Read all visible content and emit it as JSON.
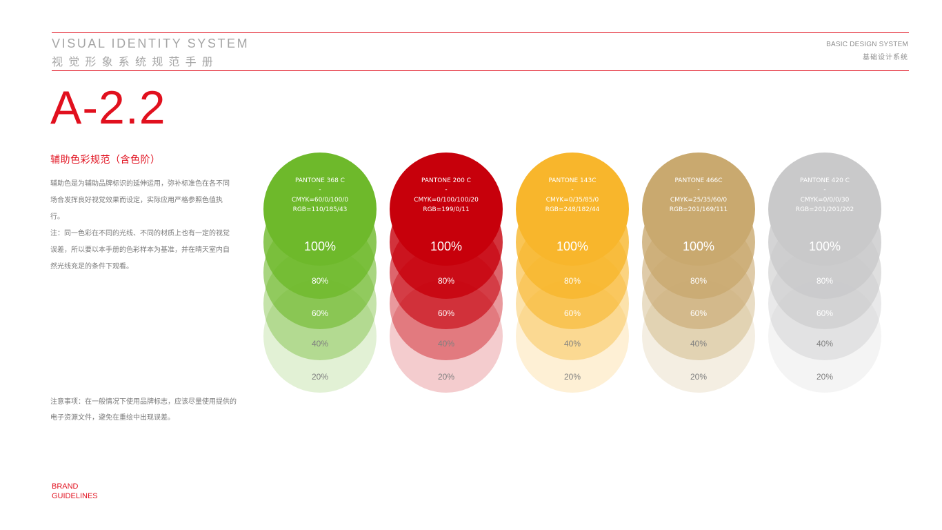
{
  "header": {
    "title_en": "VISUAL IDENTITY SYSTEM",
    "title_cn": "视觉形象系统规范手册",
    "right_en": "BASIC DESIGN SYSTEM",
    "right_cn": "基础设计系统"
  },
  "section": {
    "code": "A-2.2",
    "title": "辅助色彩规范（含色阶）",
    "desc_1": "辅助色是为辅助品牌标识的延伸运用，弥补标准色在各不同场合发挥良好视觉效果而设定，实际应用严格参照色值执行。",
    "desc_2": "注：同一色彩在不同的光线、不同的材质上也有一定的视觉误差，所以要以本手册的色彩样本为基准，并在晴天室内自然光线充足的条件下观看。",
    "note": "注意事项：在一般情况下使用品牌标志，应该尽量使用提供的电子资源文件，避免在重绘中出现误差。"
  },
  "footer": {
    "brand_line1": "BRAND",
    "brand_line2": "GUIDELINES"
  },
  "colors": [
    {
      "pantone": "PANTONE 368 C",
      "dash": "-",
      "cmyk": "CMYK=60/0/100/0",
      "rgb": "RGB=110/185/43",
      "hex": "#6eb92b",
      "tints": {
        "t100": "100%",
        "t80": "80%",
        "t60": "60%",
        "t40": "40%",
        "t20": "20%"
      },
      "text_on_dark": "#ffffff",
      "text_on_light": "#ffffff",
      "text_on_faint": "#7f7f7f"
    },
    {
      "pantone": "PANTONE 200 C",
      "dash": "-",
      "cmyk": "CMYK=0/100/100/20",
      "rgb": "RGB=199/0/11",
      "hex": "#c7000b",
      "tints": {
        "t100": "100%",
        "t80": "80%",
        "t60": "60%",
        "t40": "40%",
        "t20": "20%"
      },
      "text_on_dark": "#ffffff",
      "text_on_light": "#ffffff",
      "text_on_faint": "#7f7f7f"
    },
    {
      "pantone": "PANTONE 143C",
      "dash": "-",
      "cmyk": "CMYK=0/35/85/0",
      "rgb": "RGB=248/182/44",
      "hex": "#f8b62c",
      "tints": {
        "t100": "100%",
        "t80": "80%",
        "t60": "60%",
        "t40": "40%",
        "t20": "20%"
      },
      "text_on_dark": "#ffffff",
      "text_on_light": "#ffffff",
      "text_on_faint": "#7f7f7f"
    },
    {
      "pantone": "PANTONE 466C",
      "dash": "-",
      "cmyk": "CMYK=25/35/60/0",
      "rgb": "RGB=201/169/111",
      "hex": "#c9a96f",
      "tints": {
        "t100": "100%",
        "t80": "80%",
        "t60": "60%",
        "t40": "40%",
        "t20": "20%"
      },
      "text_on_dark": "#ffffff",
      "text_on_light": "#ffffff",
      "text_on_faint": "#7f7f7f"
    },
    {
      "pantone": "PANTONE 420 C",
      "dash": "-",
      "cmyk": "CMYK=0/0/0/30",
      "rgb": "RGB=201/201/202",
      "hex": "#c9c9ca",
      "tints": {
        "t100": "100%",
        "t80": "80%",
        "t60": "60%",
        "t40": "40%",
        "t20": "20%"
      },
      "text_on_dark": "#ffffff",
      "text_on_light": "#ffffff",
      "text_on_faint": "#7f7f7f"
    }
  ]
}
